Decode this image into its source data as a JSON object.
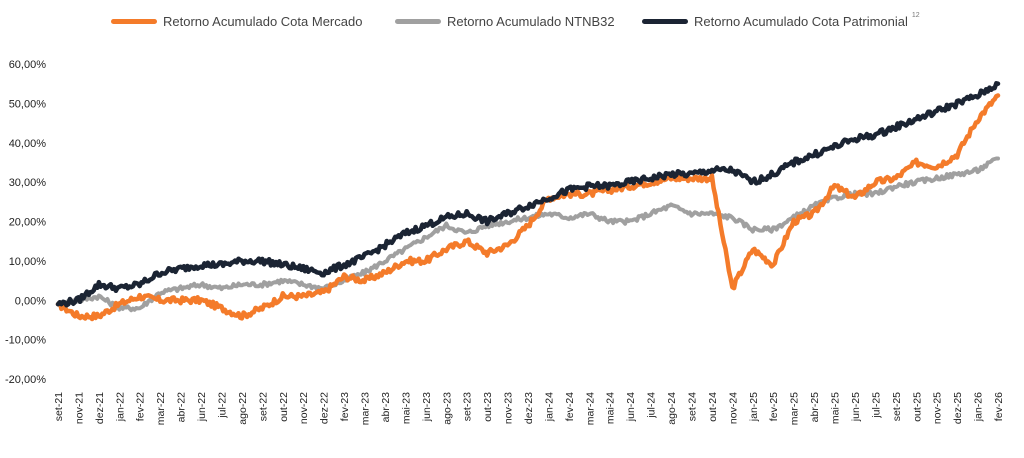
{
  "chart_data": {
    "type": "line",
    "title": "",
    "xlabel": "",
    "ylabel": "",
    "footnote": "12",
    "ylim": [
      -20,
      60
    ],
    "y_ticks": [
      60,
      50,
      40,
      30,
      20,
      10,
      0,
      -10,
      -20
    ],
    "y_tick_labels": [
      "60,00%",
      "50,00%",
      "40,00%",
      "30,00%",
      "20,00%",
      "10,00%",
      "0,00%",
      "-10,00%",
      "-20,00%"
    ],
    "categories": [
      "set-21",
      "nov-21",
      "dez-21",
      "jan-22",
      "fev-22",
      "mar-22",
      "abr-22",
      "jun-22",
      "jul-22",
      "ago-22",
      "set-22",
      "out-22",
      "nov-22",
      "dez-22",
      "fev-23",
      "mar-23",
      "abr-23",
      "mai-23",
      "jun-23",
      "ago-23",
      "set-23",
      "out-23",
      "nov-23",
      "dez-23",
      "jan-24",
      "fev-24",
      "mar-24",
      "mai-24",
      "jun-24",
      "jul-24",
      "ago-24",
      "set-24",
      "out-24",
      "nov-24",
      "jan-25",
      "fev-25",
      "mar-25",
      "abr-25",
      "mai-25",
      "jun-25",
      "jul-25",
      "set-25",
      "out-25",
      "nov-25",
      "dez-25",
      "jan-26",
      "fev-26"
    ],
    "legend_position": "top",
    "series": [
      {
        "name": "Retorno Acumulado Cota Mercado",
        "color": "#f47b2a",
        "values": [
          -1,
          -4,
          -4,
          -1,
          1,
          0,
          0,
          0,
          -2,
          -4,
          -2,
          1,
          1,
          2,
          6,
          5,
          7,
          10,
          10,
          13,
          15,
          12,
          14,
          19,
          26,
          27,
          27,
          28,
          29,
          30,
          31,
          31,
          31,
          3,
          13,
          9,
          20,
          22,
          29,
          26,
          30,
          31,
          35,
          34,
          37,
          46,
          52
        ]
      },
      {
        "name": "Retorno Acumulado NTNB32",
        "color": "#a0a0a0",
        "values": [
          -1,
          0,
          1,
          -2,
          -2,
          2,
          3,
          4,
          3,
          4,
          4,
          5,
          4,
          3,
          5,
          7,
          10,
          13,
          16,
          19,
          17,
          19,
          20,
          21,
          22,
          21,
          22,
          20,
          20,
          22,
          24,
          22,
          22,
          21,
          18,
          18,
          21,
          24,
          26,
          27,
          27,
          29,
          30,
          31,
          32,
          33,
          36
        ]
      },
      {
        "name": "Retorno Acumulado Cota Patrimonial",
        "color": "#1b2433",
        "values": [
          -1,
          0,
          4,
          3,
          4,
          7,
          8,
          9,
          9,
          10,
          10,
          9,
          8,
          7,
          9,
          11,
          14,
          17,
          19,
          21,
          22,
          20,
          22,
          24,
          26,
          28,
          29,
          29,
          30,
          31,
          32,
          32,
          33,
          33,
          30,
          32,
          35,
          37,
          39,
          41,
          42,
          44,
          46,
          48,
          50,
          52,
          55
        ]
      }
    ]
  }
}
